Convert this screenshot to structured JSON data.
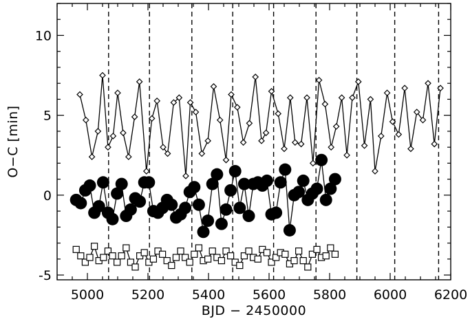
{
  "chart_data": {
    "type": "scatter",
    "title": "",
    "xlabel": "BJD − 2450000",
    "ylabel": "O−C [min]",
    "xlim": [
      4900,
      6200
    ],
    "ylim": [
      -5.3,
      12
    ],
    "x_ticks": [
      5000,
      5200,
      5400,
      5600,
      5800,
      6000,
      6200
    ],
    "y_ticks": [
      -5,
      0,
      5,
      10
    ],
    "grid": false,
    "legend": "none",
    "vertical_lines": [
      5070,
      5205,
      5345,
      5480,
      5615,
      5755,
      5890,
      6015,
      6160
    ],
    "series": [
      {
        "marker": "diamond",
        "values": [
          [
            4975,
            6.3
          ],
          [
            4995,
            4.7
          ],
          [
            5015,
            2.4
          ],
          [
            5035,
            4.0
          ],
          [
            5050,
            7.5
          ],
          [
            5068,
            3.0
          ],
          [
            5085,
            3.7
          ],
          [
            5100,
            6.4
          ],
          [
            5118,
            3.9
          ],
          [
            5136,
            2.4
          ],
          [
            5156,
            4.9
          ],
          [
            5172,
            7.1
          ],
          [
            5195,
            1.5
          ],
          [
            5213,
            4.8
          ],
          [
            5230,
            5.9
          ],
          [
            5250,
            3.0
          ],
          [
            5265,
            2.6
          ],
          [
            5285,
            5.8
          ],
          [
            5303,
            6.1
          ],
          [
            5325,
            1.2
          ],
          [
            5340,
            5.8
          ],
          [
            5358,
            5.2
          ],
          [
            5378,
            2.6
          ],
          [
            5398,
            3.4
          ],
          [
            5417,
            6.8
          ],
          [
            5438,
            4.7
          ],
          [
            5458,
            2.2
          ],
          [
            5475,
            6.3
          ],
          [
            5495,
            5.5
          ],
          [
            5515,
            3.3
          ],
          [
            5535,
            4.5
          ],
          [
            5555,
            7.4
          ],
          [
            5575,
            3.4
          ],
          [
            5590,
            3.9
          ],
          [
            5608,
            6.5
          ],
          [
            5630,
            5.1
          ],
          [
            5650,
            2.9
          ],
          [
            5670,
            6.1
          ],
          [
            5686,
            3.3
          ],
          [
            5706,
            3.2
          ],
          [
            5725,
            6.1
          ],
          [
            5745,
            2.0
          ],
          [
            5765,
            7.2
          ],
          [
            5785,
            5.7
          ],
          [
            5805,
            3.0
          ],
          [
            5822,
            4.3
          ],
          [
            5840,
            6.1
          ],
          [
            5857,
            2.5
          ],
          [
            5875,
            6.1
          ],
          [
            5895,
            7.1
          ],
          [
            5915,
            3.1
          ],
          [
            5935,
            6.0
          ],
          [
            5950,
            1.5
          ],
          [
            5970,
            3.7
          ],
          [
            5990,
            6.4
          ],
          [
            6008,
            4.6
          ],
          [
            6028,
            3.8
          ],
          [
            6048,
            6.7
          ],
          [
            6068,
            2.9
          ],
          [
            6088,
            5.2
          ],
          [
            6108,
            4.7
          ],
          [
            6125,
            7.0
          ],
          [
            6146,
            3.2
          ],
          [
            6166,
            6.7
          ]
        ]
      },
      {
        "marker": "filled-circle",
        "values": [
          [
            4963,
            -0.3
          ],
          [
            4978,
            -0.5
          ],
          [
            4993,
            0.3
          ],
          [
            5008,
            0.6
          ],
          [
            5023,
            -1.1
          ],
          [
            5038,
            -0.7
          ],
          [
            5052,
            0.8
          ],
          [
            5068,
            -1.1
          ],
          [
            5083,
            -1.5
          ],
          [
            5098,
            0.1
          ],
          [
            5113,
            0.7
          ],
          [
            5128,
            -1.3
          ],
          [
            5143,
            -0.9
          ],
          [
            5158,
            -0.2
          ],
          [
            5173,
            -0.4
          ],
          [
            5188,
            0.8
          ],
          [
            5203,
            0.8
          ],
          [
            5218,
            -1.0
          ],
          [
            5233,
            -1.1
          ],
          [
            5248,
            -0.8
          ],
          [
            5263,
            -0.3
          ],
          [
            5278,
            -0.6
          ],
          [
            5293,
            -1.4
          ],
          [
            5308,
            -1.2
          ],
          [
            5323,
            -0.8
          ],
          [
            5338,
            0.2
          ],
          [
            5353,
            0.5
          ],
          [
            5368,
            -0.6
          ],
          [
            5383,
            -2.3
          ],
          [
            5398,
            -1.6
          ],
          [
            5413,
            0.7
          ],
          [
            5428,
            1.3
          ],
          [
            5443,
            -1.8
          ],
          [
            5458,
            -0.9
          ],
          [
            5473,
            0.3
          ],
          [
            5488,
            1.5
          ],
          [
            5503,
            -0.8
          ],
          [
            5518,
            0.7
          ],
          [
            5533,
            -1.3
          ],
          [
            5548,
            0.7
          ],
          [
            5563,
            0.8
          ],
          [
            5578,
            0.6
          ],
          [
            5593,
            0.9
          ],
          [
            5608,
            -1.2
          ],
          [
            5623,
            -1.1
          ],
          [
            5638,
            0.8
          ],
          [
            5653,
            1.6
          ],
          [
            5668,
            -2.2
          ],
          [
            5683,
            0.0
          ],
          [
            5698,
            0.2
          ],
          [
            5713,
            0.9
          ],
          [
            5728,
            -0.3
          ],
          [
            5743,
            0.1
          ],
          [
            5758,
            0.4
          ],
          [
            5773,
            2.2
          ],
          [
            5788,
            -0.3
          ],
          [
            5803,
            0.4
          ],
          [
            5818,
            1.0
          ]
        ]
      },
      {
        "marker": "open-square",
        "values": [
          [
            4963,
            -3.4
          ],
          [
            4978,
            -3.8
          ],
          [
            4993,
            -4.2
          ],
          [
            5008,
            -3.9
          ],
          [
            5023,
            -3.2
          ],
          [
            5038,
            -4.1
          ],
          [
            5053,
            -3.9
          ],
          [
            5068,
            -3.5
          ],
          [
            5083,
            -3.8
          ],
          [
            5098,
            -4.2
          ],
          [
            5113,
            -3.8
          ],
          [
            5128,
            -3.3
          ],
          [
            5143,
            -4.2
          ],
          [
            5158,
            -4.5
          ],
          [
            5173,
            -3.8
          ],
          [
            5188,
            -3.6
          ],
          [
            5203,
            -4.2
          ],
          [
            5218,
            -4.0
          ],
          [
            5233,
            -3.5
          ],
          [
            5248,
            -3.7
          ],
          [
            5263,
            -4.1
          ],
          [
            5278,
            -4.4
          ],
          [
            5293,
            -3.9
          ],
          [
            5308,
            -3.5
          ],
          [
            5323,
            -3.9
          ],
          [
            5338,
            -4.2
          ],
          [
            5353,
            -3.7
          ],
          [
            5368,
            -3.3
          ],
          [
            5383,
            -4.1
          ],
          [
            5398,
            -4.0
          ],
          [
            5413,
            -3.5
          ],
          [
            5428,
            -3.9
          ],
          [
            5443,
            -4.1
          ],
          [
            5458,
            -3.5
          ],
          [
            5473,
            -3.8
          ],
          [
            5488,
            -4.2
          ],
          [
            5503,
            -4.4
          ],
          [
            5518,
            -3.8
          ],
          [
            5533,
            -3.5
          ],
          [
            5548,
            -3.9
          ],
          [
            5563,
            -4.0
          ],
          [
            5578,
            -3.4
          ],
          [
            5593,
            -3.6
          ],
          [
            5608,
            -4.2
          ],
          [
            5623,
            -3.9
          ],
          [
            5638,
            -3.6
          ],
          [
            5653,
            -3.7
          ],
          [
            5668,
            -4.3
          ],
          [
            5683,
            -4.1
          ],
          [
            5698,
            -3.5
          ],
          [
            5713,
            -4.1
          ],
          [
            5728,
            -4.5
          ],
          [
            5743,
            -3.7
          ],
          [
            5758,
            -3.4
          ],
          [
            5773,
            -3.9
          ],
          [
            5788,
            -3.8
          ],
          [
            5803,
            -3.3
          ],
          [
            5818,
            -3.7
          ]
        ]
      }
    ]
  }
}
